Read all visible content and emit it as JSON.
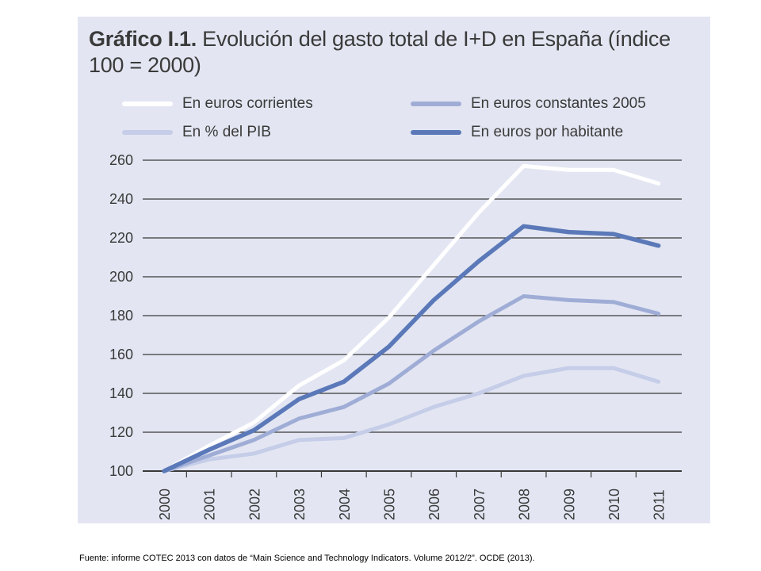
{
  "title_bold": "Gráfico I.1.",
  "title_rest": "Evolución del gasto total de I+D en España (índice 100 = 2000)",
  "source": "Fuente: informe COTEC 2013  con datos de “Main Science and Technology Indicators. Volume 2012/2”.  OCDE (2013).",
  "colors": {
    "panel": "#e3e6f2",
    "grid": "#3a3a3a",
    "corrientes": "#ffffff",
    "constantes": "#9fadd6",
    "pib": "#c5cde8",
    "habitante": "#5b79b9"
  },
  "legend": [
    {
      "label": "En euros corrientes",
      "series": "corrientes"
    },
    {
      "label": "En euros constantes 2005",
      "series": "constantes"
    },
    {
      "label": "En % del PIB",
      "series": "pib"
    },
    {
      "label": "En euros por habitante",
      "series": "habitante"
    }
  ],
  "chart_data": {
    "type": "line",
    "title": "Evolución del gasto total de I+D en España (índice 100 = 2000)",
    "xlabel": "",
    "ylabel": "",
    "ylim": [
      100,
      260
    ],
    "yticks": [
      100,
      120,
      140,
      160,
      180,
      200,
      220,
      240,
      260
    ],
    "categories": [
      "2000",
      "2001",
      "2002",
      "2003",
      "2004",
      "2005",
      "2006",
      "2007",
      "2008",
      "2009",
      "2010",
      "2011"
    ],
    "grid": true,
    "legend_position": "top",
    "series": [
      {
        "key": "corrientes",
        "name": "En euros corrientes",
        "values": [
          100,
          113,
          125,
          144,
          157,
          179,
          206,
          233,
          257,
          255,
          255,
          248
        ]
      },
      {
        "key": "constantes",
        "name": "En euros constantes 2005",
        "values": [
          100,
          108,
          116,
          127,
          133,
          145,
          162,
          177,
          190,
          188,
          187,
          181
        ]
      },
      {
        "key": "pib",
        "name": "En % del PIB",
        "values": [
          100,
          106,
          109,
          116,
          117,
          124,
          133,
          140,
          149,
          153,
          153,
          146
        ]
      },
      {
        "key": "habitante",
        "name": "En euros por habitante",
        "values": [
          100,
          111,
          121,
          137,
          146,
          164,
          188,
          208,
          226,
          223,
          222,
          216
        ]
      }
    ]
  }
}
